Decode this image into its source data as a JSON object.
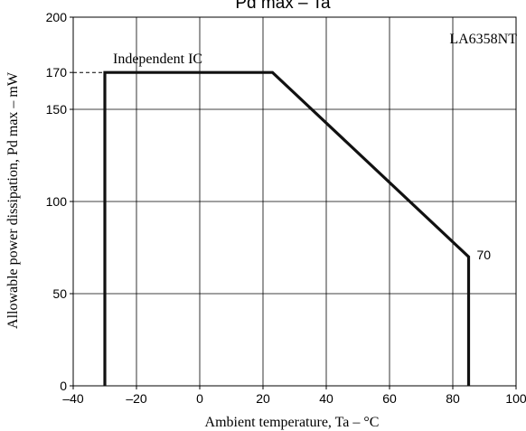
{
  "chart_data": {
    "type": "line",
    "title": "Pd max  –  Ta",
    "xlabel": "Ambient temperature,  Ta  –  °C",
    "ylabel": "Allowable power dissipation,  Pd max  –  mW",
    "xlim": [
      -40,
      100
    ],
    "ylim": [
      0,
      200
    ],
    "x_ticks": [
      -40,
      -20,
      0,
      20,
      40,
      60,
      80,
      100
    ],
    "x_tick_labels": [
      "–40",
      "–20",
      "0",
      "20",
      "40",
      "60",
      "80",
      "100"
    ],
    "y_ticks": [
      0,
      50,
      100,
      150,
      170,
      200
    ],
    "y_tick_labels": [
      "0",
      "50",
      "100",
      "150",
      "170",
      "200"
    ],
    "grid": true,
    "series": [
      {
        "name": "Independent IC",
        "x": [
          -30,
          -30,
          23,
          85,
          85
        ],
        "y": [
          0,
          170,
          170,
          70,
          0
        ]
      }
    ],
    "annotations": [
      {
        "text": "70",
        "x": 85,
        "y": 70
      }
    ],
    "reference_lines": [
      {
        "style": "dashed",
        "x": [
          -40,
          -30
        ],
        "y": [
          170,
          170
        ]
      }
    ],
    "part_label": "LA6358NT",
    "colors": {
      "line": "#111111",
      "grid": "#000000",
      "background": "#ffffff"
    }
  }
}
